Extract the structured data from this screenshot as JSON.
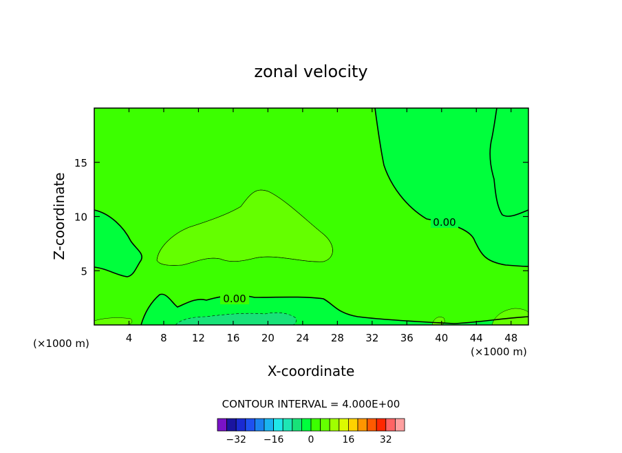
{
  "chart_data": {
    "type": "contour",
    "title": "zonal velocity",
    "xlabel": "X-coordinate",
    "ylabel": "Z-coordinate",
    "x_unit_left": "(×1000 m)",
    "x_unit_right": "(×1000 m)",
    "xlim": [
      0,
      50
    ],
    "ylim": [
      0,
      20
    ],
    "x_ticks": [
      "4",
      "8",
      "12",
      "16",
      "20",
      "24",
      "28",
      "32",
      "36",
      "40",
      "44",
      "48"
    ],
    "x_tick_values": [
      4,
      8,
      12,
      16,
      20,
      24,
      28,
      32,
      36,
      40,
      44,
      48
    ],
    "y_ticks": [
      "5",
      "10",
      "15"
    ],
    "y_tick_values": [
      5,
      10,
      15
    ],
    "contour_interval_text": "CONTOUR INTERVAL = 4.000E+00",
    "contour_labels": [
      "0.00",
      "0.00"
    ],
    "colorbar": {
      "ticks": [
        "-32",
        "-16",
        "0",
        "16",
        "32"
      ],
      "tick_values": [
        -32,
        -16,
        0,
        16,
        32
      ],
      "levels": [
        -36,
        -32,
        -28,
        -24,
        -20,
        -16,
        -12,
        -8,
        -4,
        0,
        4,
        8,
        12,
        16,
        20,
        24,
        28,
        32,
        36
      ],
      "colors": [
        "#7a12c8",
        "#1a14a0",
        "#1a2ad2",
        "#1e50f0",
        "#1a82f0",
        "#1ab4f0",
        "#20e8e8",
        "#1ee6b4",
        "#18e278",
        "#00ff3c",
        "#3cff00",
        "#64ff00",
        "#a0ff00",
        "#dcfa00",
        "#ffd200",
        "#ff9600",
        "#ff5a00",
        "#ff2800",
        "#ff6464",
        "#ffa0a0"
      ]
    },
    "regions": {
      "background_color": "#3cff00",
      "negative_color": "#00ff3c",
      "positive_color": "#64ff00",
      "strong_negative_color": "#18e278"
    }
  }
}
